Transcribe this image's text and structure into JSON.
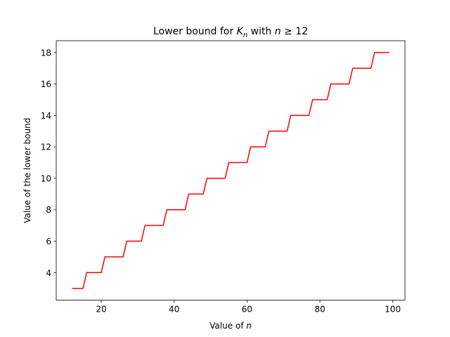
{
  "chart_data": {
    "type": "line",
    "title_prefix": "Lower bound for ",
    "title_var": "K",
    "title_sub": "n",
    "title_mid": " with ",
    "title_n": "n",
    "title_suffix": " ≥ 12",
    "xlabel_prefix": "Value of ",
    "xlabel_var": "n",
    "ylabel": "Value of the lower bound",
    "xlim": [
      7.65,
      103.35
    ],
    "ylim": [
      2.25,
      18.75
    ],
    "xticks": [
      20,
      40,
      60,
      80,
      100
    ],
    "xtick_labels": [
      "20",
      "40",
      "60",
      "80",
      "100"
    ],
    "yticks": [
      4,
      6,
      8,
      10,
      12,
      14,
      16,
      18
    ],
    "ytick_labels": [
      "4",
      "6",
      "8",
      "10",
      "12",
      "14",
      "16",
      "18"
    ],
    "grid": false,
    "series": [
      {
        "color": "#ff0000",
        "x": [
          12,
          15,
          16,
          20,
          21,
          26,
          27,
          31,
          32,
          37,
          38,
          43,
          44,
          48,
          49,
          54,
          55,
          60,
          61,
          65,
          66,
          71,
          72,
          77,
          78,
          82,
          83,
          88,
          89,
          94,
          95,
          99
        ],
        "y": [
          3,
          3,
          4,
          4,
          5,
          5,
          6,
          6,
          7,
          7,
          8,
          8,
          9,
          9,
          10,
          10,
          11,
          11,
          12,
          12,
          13,
          13,
          14,
          14,
          15,
          15,
          16,
          16,
          17,
          17,
          18,
          18
        ]
      }
    ]
  }
}
